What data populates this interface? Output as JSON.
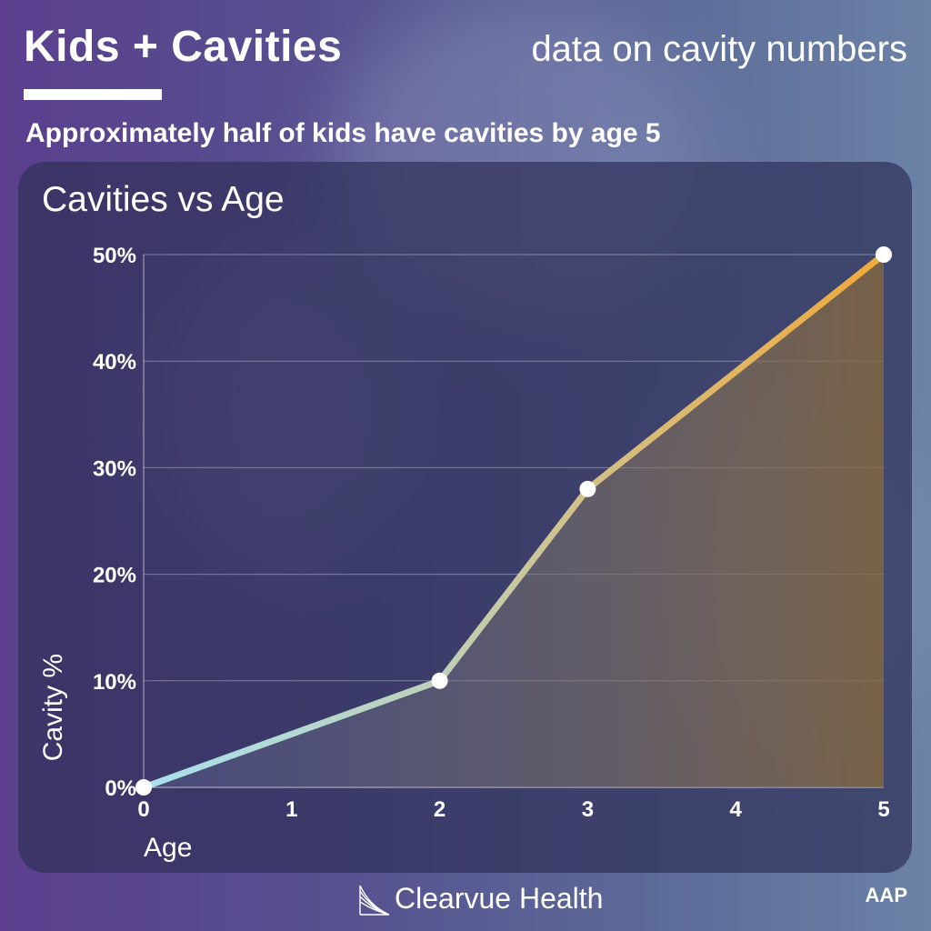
{
  "header": {
    "title": "Kids + Cavities",
    "subtitle": "data on cavity numbers"
  },
  "headline": "Approximately half of kids have cavities by age 5",
  "chart_data": {
    "type": "area",
    "title": "Cavities vs Age",
    "xlabel": "Age",
    "ylabel": "Cavity %",
    "x": [
      0,
      2,
      3,
      5
    ],
    "y": [
      0,
      10,
      28,
      50
    ],
    "xticks": [
      0,
      1,
      2,
      3,
      4,
      5
    ],
    "yticks": [
      0,
      10,
      20,
      30,
      40,
      50
    ],
    "ytick_labels": [
      "0%",
      "10%",
      "20%",
      "30%",
      "40%",
      "50%"
    ],
    "xlim": [
      0,
      5
    ],
    "ylim": [
      0,
      50
    ],
    "grid": true,
    "line_gradient": [
      "#a9e1ee",
      "#f0a93a"
    ],
    "marker_color": "#ffffff"
  },
  "footer": {
    "brand": "Clearvue Health",
    "source": "AAP"
  }
}
